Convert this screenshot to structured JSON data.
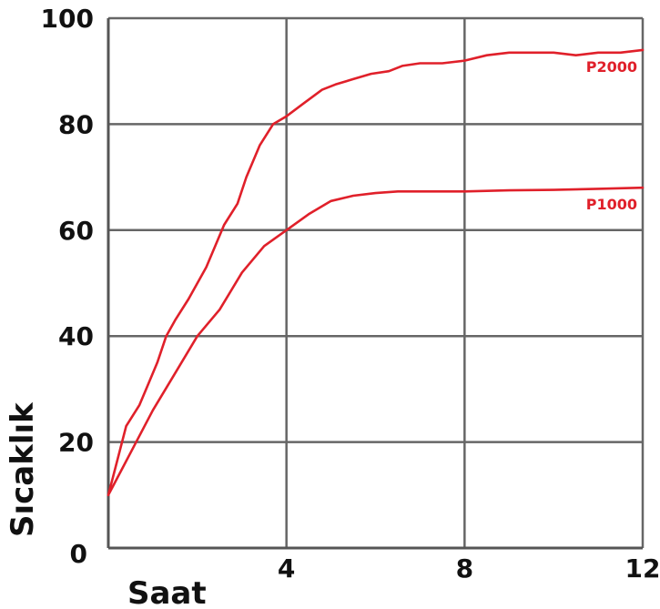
{
  "chart_data": {
    "type": "line",
    "xlabel": "Saat",
    "ylabel": "Sıcaklık",
    "xlim": [
      0,
      12
    ],
    "ylim": [
      0,
      100
    ],
    "x_ticks": [
      0,
      4,
      8,
      12
    ],
    "y_ticks": [
      0,
      20,
      40,
      60,
      80,
      100
    ],
    "x_tick_labels": [
      "4",
      "8",
      "12"
    ],
    "y_tick_labels": [
      "0",
      "20",
      "40",
      "60",
      "80",
      "100"
    ],
    "grid": true,
    "series": [
      {
        "name": "P2000",
        "color": "#e0202a",
        "x": [
          0,
          0.4,
          0.7,
          0.9,
          1.1,
          1.3,
          1.5,
          1.8,
          2.2,
          2.4,
          2.6,
          2.9,
          3.1,
          3.4,
          3.7,
          4.0,
          4.4,
          4.8,
          5.1,
          5.5,
          5.9,
          6.3,
          6.6,
          7.0,
          7.5,
          8.0,
          8.5,
          9.0,
          9.5,
          10.0,
          10.5,
          11.0,
          11.5,
          12.0
        ],
        "values": [
          10,
          23,
          27,
          31,
          35,
          40,
          43,
          47,
          53,
          57,
          61,
          65,
          70,
          76,
          80,
          81.5,
          84,
          86.5,
          87.5,
          88.5,
          89.5,
          90,
          91,
          91.5,
          91.5,
          92,
          93,
          93.5,
          93.5,
          93.5,
          93,
          93.5,
          93.5,
          94
        ]
      },
      {
        "name": "P1000",
        "color": "#e0202a",
        "x": [
          0,
          0.5,
          1.0,
          1.5,
          2.0,
          2.5,
          3.0,
          3.5,
          4.0,
          4.5,
          5.0,
          5.5,
          6.0,
          6.5,
          7.0,
          8.0,
          9.0,
          10.0,
          11.0,
          12.0
        ],
        "values": [
          10,
          18,
          26,
          33,
          40,
          45,
          52,
          57,
          60,
          63,
          65.5,
          66.5,
          67,
          67.3,
          67.3,
          67.3,
          67.5,
          67.6,
          67.8,
          68
        ]
      }
    ]
  }
}
